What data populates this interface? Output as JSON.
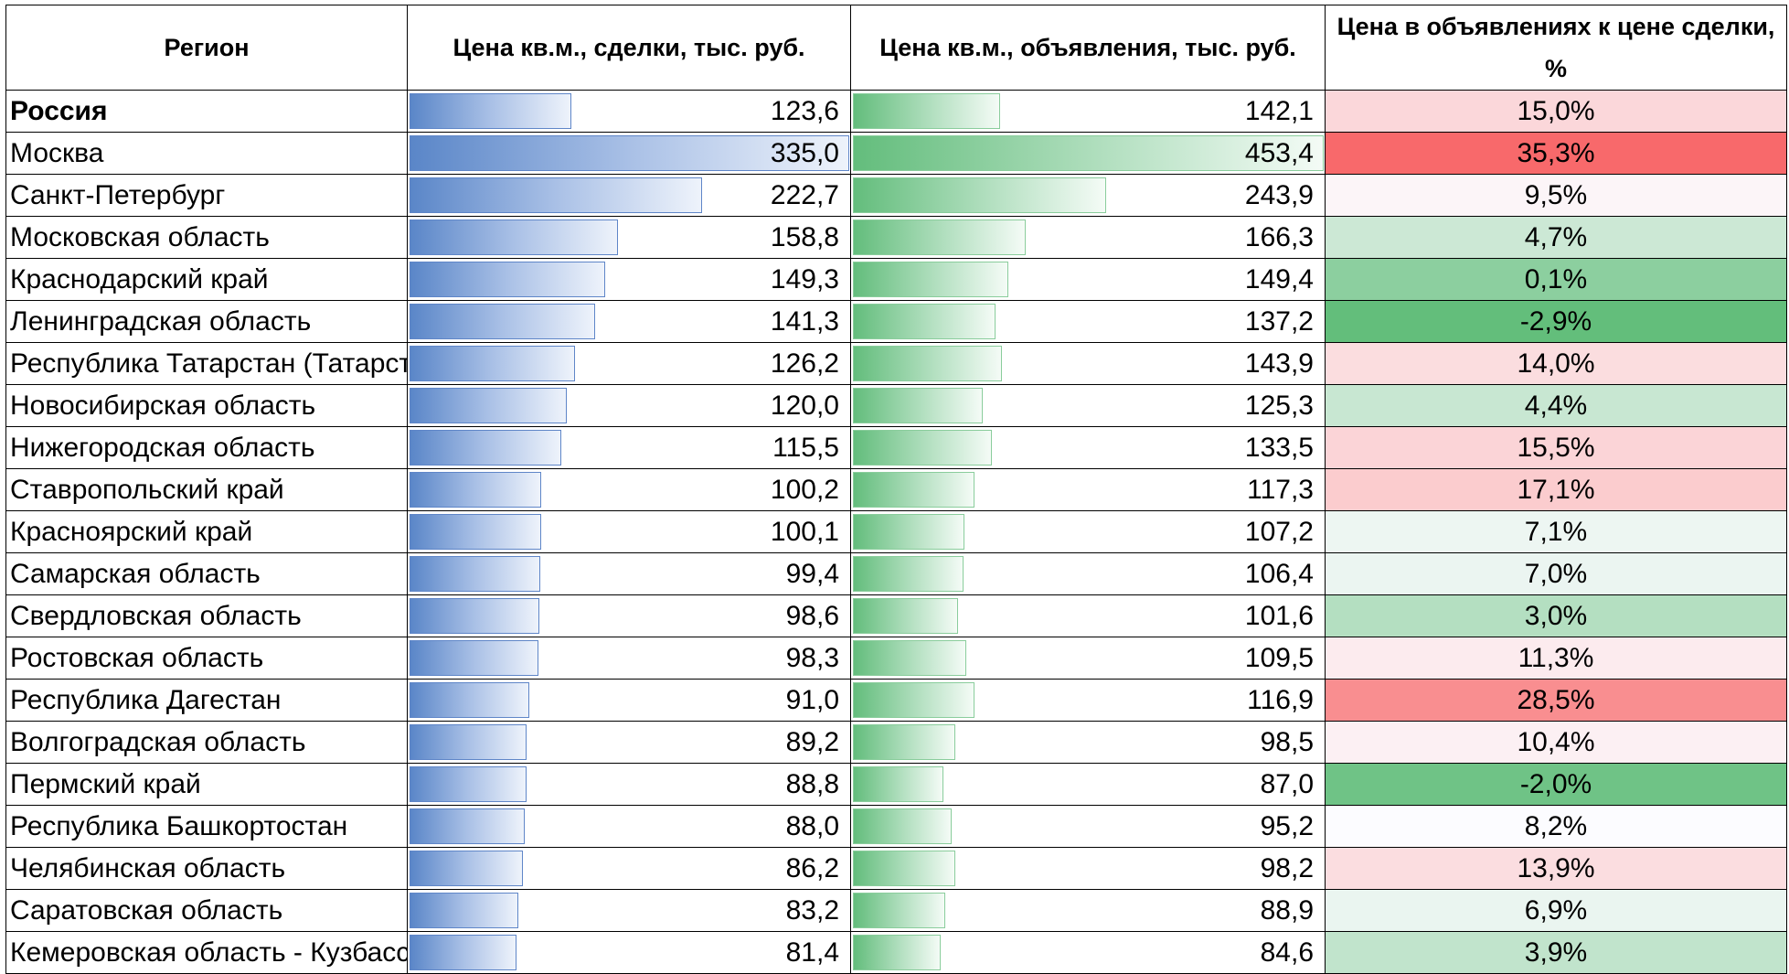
{
  "colors": {
    "deal_bar": "#5a86c8",
    "ad_bar": "#63bd7c",
    "scale_negative": "#63be7b",
    "scale_mid": "#fcfcff",
    "scale_positive": "#f8696b"
  },
  "headers": {
    "region": "Регион",
    "deal_price": "Цена кв.м., сделки, тыс. руб.",
    "ad_price": "Цена кв.м., объявления, тыс. руб.",
    "ratio": "Цена в объявлениях к цене сделки, %"
  },
  "rows": [
    {
      "region": "Россия",
      "bold": true,
      "deal": "123,6",
      "ad": "142,1",
      "ratio": "15,0%"
    },
    {
      "region": "Москва",
      "deal": "335,0",
      "ad": "453,4",
      "ratio": "35,3%"
    },
    {
      "region": "Санкт-Петербург",
      "deal": "222,7",
      "ad": "243,9",
      "ratio": "9,5%"
    },
    {
      "region": "Московская область",
      "deal": "158,8",
      "ad": "166,3",
      "ratio": "4,7%"
    },
    {
      "region": "Краснодарский край",
      "deal": "149,3",
      "ad": "149,4",
      "ratio": "0,1%"
    },
    {
      "region": "Ленинградская область",
      "deal": "141,3",
      "ad": "137,2",
      "ratio": "-2,9%"
    },
    {
      "region": "Республика Татарстан (Татарстан)",
      "deal": "126,2",
      "ad": "143,9",
      "ratio": "14,0%"
    },
    {
      "region": "Новосибирская область",
      "deal": "120,0",
      "ad": "125,3",
      "ratio": "4,4%"
    },
    {
      "region": "Нижегородская область",
      "deal": "115,5",
      "ad": "133,5",
      "ratio": "15,5%"
    },
    {
      "region": "Ставропольский край",
      "deal": "100,2",
      "ad": "117,3",
      "ratio": "17,1%"
    },
    {
      "region": "Красноярский край",
      "deal": "100,1",
      "ad": "107,2",
      "ratio": "7,1%"
    },
    {
      "region": "Самарская область",
      "deal": "99,4",
      "ad": "106,4",
      "ratio": "7,0%"
    },
    {
      "region": "Свердловская область",
      "deal": "98,6",
      "ad": "101,6",
      "ratio": "3,0%"
    },
    {
      "region": "Ростовская область",
      "deal": "98,3",
      "ad": "109,5",
      "ratio": "11,3%"
    },
    {
      "region": "Республика Дагестан",
      "deal": "91,0",
      "ad": "116,9",
      "ratio": "28,5%"
    },
    {
      "region": "Волгоградская область",
      "deal": "89,2",
      "ad": "98,5",
      "ratio": "10,4%"
    },
    {
      "region": "Пермский край",
      "deal": "88,8",
      "ad": "87,0",
      "ratio": "-2,0%"
    },
    {
      "region": "Республика Башкортостан",
      "deal": "88,0",
      "ad": "95,2",
      "ratio": "8,2%"
    },
    {
      "region": "Челябинская область",
      "deal": "86,2",
      "ad": "98,2",
      "ratio": "13,9%"
    },
    {
      "region": "Саратовская область",
      "deal": "83,2",
      "ad": "88,9",
      "ratio": "6,9%"
    },
    {
      "region": "Кемеровская область - Кузбасс",
      "deal": "81,4",
      "ad": "84,6",
      "ratio": "3,9%"
    }
  ]
}
